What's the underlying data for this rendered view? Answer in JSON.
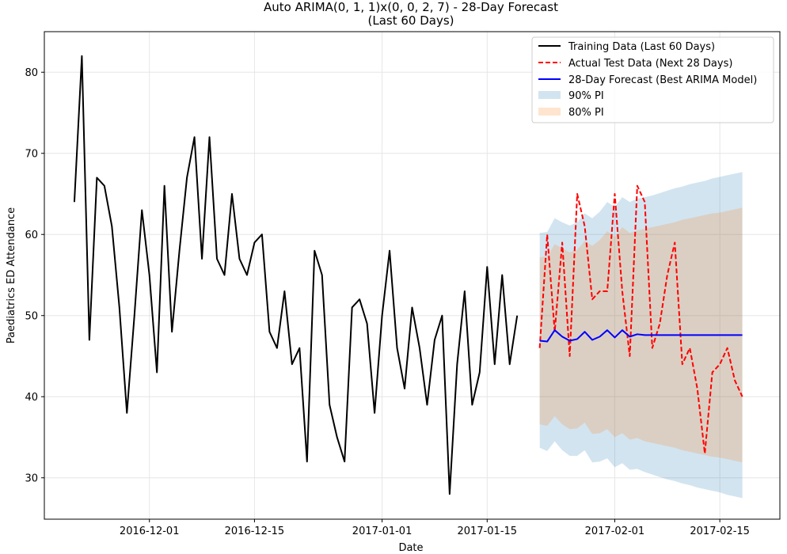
{
  "chart_data": {
    "type": "line",
    "title_line1": "Auto ARIMA(0, 1, 1)x(0, 0, 2, 7) - 28-Day Forecast",
    "title_line2": "(Last 60 Days)",
    "xlabel": "Date",
    "ylabel": "Paediatrics ED Attendance",
    "x_range": [
      "2016-11-17",
      "2017-02-23"
    ],
    "ylim": [
      24.9,
      85.0
    ],
    "grid": true,
    "legend_position": "top-right",
    "x_ticks": [
      {
        "date": "2016-12-01",
        "label": "2016-12-01"
      },
      {
        "date": "2016-12-15",
        "label": "2016-12-15"
      },
      {
        "date": "2017-01-01",
        "label": "2017-01-01"
      },
      {
        "date": "2017-01-15",
        "label": "2017-01-15"
      },
      {
        "date": "2017-02-01",
        "label": "2017-02-01"
      },
      {
        "date": "2017-02-15",
        "label": "2017-02-15"
      }
    ],
    "y_ticks": [
      30,
      40,
      50,
      60,
      70,
      80
    ],
    "training": {
      "name": "Training Data (Last 60 Days)",
      "color": "#000000",
      "start_date": "2016-11-21",
      "values": [
        64,
        82,
        47,
        67,
        66,
        61,
        51,
        38,
        50,
        63,
        55,
        43,
        66,
        48,
        58,
        67,
        72,
        57,
        72,
        57,
        55,
        65,
        57,
        55,
        59,
        60,
        48,
        46,
        53,
        44,
        46,
        32,
        58,
        55,
        39,
        35,
        32,
        51,
        52,
        49,
        38,
        50,
        58,
        46,
        41,
        51,
        46,
        39,
        47,
        50,
        28,
        44,
        53,
        39,
        43,
        56,
        44,
        55,
        44,
        50
      ]
    },
    "actual": {
      "name": "Actual Test Data (Next 28 Days)",
      "color": "#ff0000",
      "start_date": "2017-01-22",
      "values": [
        46,
        60,
        48,
        59,
        45,
        65,
        61,
        52,
        53,
        53,
        65,
        53,
        45,
        66,
        64,
        46,
        49,
        55,
        59,
        44,
        46,
        41,
        33,
        43,
        44,
        46,
        42,
        40
      ]
    },
    "forecast": {
      "name": "28-Day Forecast (Best ARIMA Model)",
      "color": "#0000ff",
      "start_date": "2017-01-22",
      "values": [
        46.9,
        46.8,
        48.2,
        47.4,
        46.9,
        47.1,
        48.0,
        47.0,
        47.4,
        48.2,
        47.3,
        48.2,
        47.4,
        47.7,
        47.6,
        47.6,
        47.6,
        47.6,
        47.6,
        47.6,
        47.6,
        47.6,
        47.6,
        47.6,
        47.6,
        47.6,
        47.6,
        47.6
      ]
    },
    "pi90": {
      "name": "90% PI",
      "color": "#1f77b4",
      "opacity": 0.2,
      "lower": [
        33.7,
        33.3,
        34.5,
        33.4,
        32.7,
        32.7,
        33.4,
        31.9,
        32.0,
        32.4,
        31.3,
        31.8,
        31.0,
        31.1,
        30.7,
        30.4,
        30.1,
        29.8,
        29.6,
        29.3,
        29.1,
        28.8,
        28.6,
        28.4,
        28.2,
        27.9,
        27.7,
        27.5
      ],
      "upper": [
        60.2,
        60.3,
        62.0,
        61.5,
        61.1,
        61.5,
        62.6,
        62.0,
        62.8,
        64.0,
        63.4,
        64.6,
        64.0,
        64.4,
        64.6,
        64.8,
        65.1,
        65.4,
        65.7,
        65.9,
        66.2,
        66.4,
        66.6,
        66.9,
        67.1,
        67.3,
        67.5,
        67.7
      ]
    },
    "pi80": {
      "name": "80% PI",
      "color": "#ff7f0e",
      "opacity": 0.2,
      "lower": [
        36.6,
        36.4,
        37.6,
        36.6,
        36.0,
        36.1,
        36.8,
        35.4,
        35.5,
        36.0,
        35.0,
        35.5,
        34.7,
        34.9,
        34.5,
        34.3,
        34.1,
        33.9,
        33.7,
        33.4,
        33.2,
        33.0,
        32.8,
        32.6,
        32.5,
        32.3,
        32.1,
        31.9
      ],
      "upper": [
        57.2,
        57.3,
        58.8,
        58.3,
        57.8,
        58.1,
        59.2,
        58.6,
        59.3,
        60.4,
        59.7,
        60.9,
        60.2,
        60.5,
        60.7,
        60.9,
        61.1,
        61.3,
        61.5,
        61.8,
        62.0,
        62.2,
        62.4,
        62.6,
        62.7,
        62.9,
        63.1,
        63.3
      ]
    }
  }
}
